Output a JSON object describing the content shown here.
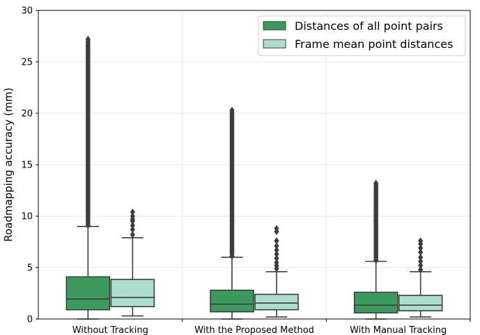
{
  "chart_data": {
    "type": "box",
    "ylabel": "Roadmapping accuracy (mm)",
    "xlabel": "",
    "ylim": [
      0,
      30
    ],
    "yticks": [
      0,
      5,
      10,
      15,
      20,
      25,
      30
    ],
    "grid": true,
    "legend_position": "top-right",
    "categories": [
      "Without Tracking",
      "With the Proposed Method",
      "With Manual Tracking"
    ],
    "series": [
      {
        "name": "Distances of all point pairs",
        "color": "#3c9a5f",
        "boxes": [
          {
            "whisker_low": 0.0,
            "q1": 0.9,
            "median": 1.95,
            "q3": 4.1,
            "whisker_high": 9.0,
            "outlier_min": 9.1,
            "outlier_max": 27.2
          },
          {
            "whisker_low": 0.0,
            "q1": 0.7,
            "median": 1.45,
            "q3": 2.8,
            "whisker_high": 6.0,
            "outlier_min": 6.1,
            "outlier_max": 20.3
          },
          {
            "whisker_low": 0.0,
            "q1": 0.6,
            "median": 1.35,
            "q3": 2.6,
            "whisker_high": 5.6,
            "outlier_min": 5.7,
            "outlier_max": 13.2
          }
        ]
      },
      {
        "name": "Frame mean point distances",
        "color": "#addcd0",
        "boxes": [
          {
            "whisker_low": 0.3,
            "q1": 1.2,
            "median": 2.1,
            "q3": 3.85,
            "whisker_high": 7.9,
            "outliers": [
              8.2,
              8.7,
              9.1,
              9.5,
              9.7,
              10.0,
              10.4
            ]
          },
          {
            "whisker_low": 0.2,
            "q1": 0.9,
            "median": 1.55,
            "q3": 2.4,
            "whisker_high": 4.6,
            "outliers": [
              4.9,
              5.2,
              5.5,
              5.9,
              6.3,
              6.7,
              7.1,
              7.6,
              8.5,
              8.8
            ]
          },
          {
            "whisker_low": 0.2,
            "q1": 0.8,
            "median": 1.35,
            "q3": 2.3,
            "whisker_high": 4.6,
            "outliers": [
              4.8,
              5.2,
              5.6,
              6.0,
              6.5,
              6.9,
              7.3,
              7.6
            ]
          }
        ]
      }
    ]
  }
}
